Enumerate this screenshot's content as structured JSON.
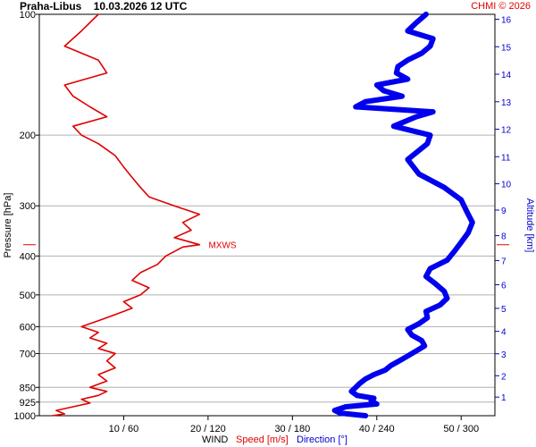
{
  "header": {
    "station": "Praha-Libus",
    "datetime": "10.03.2026 12 UTC",
    "credit": "CHMI © 2026"
  },
  "chart_data": {
    "type": "line",
    "x_title": "WIND",
    "x_speed_label": "Speed [m/s]",
    "x_direction_label": "Direction [°]",
    "ylabel_left": "Pressure [hPa]",
    "ylabel_right": "Altitude [km]",
    "pressure_ticks": [
      "100",
      "200",
      "300",
      "400",
      "500",
      "600",
      "700",
      "850",
      "925",
      "1000"
    ],
    "altitude_ticks": [
      "1",
      "2",
      "3",
      "4",
      "5",
      "6",
      "7",
      "8",
      "9",
      "10",
      "11",
      "12",
      "13",
      "14",
      "15",
      "16"
    ],
    "x_ticks": [
      "10 / 60",
      "20 / 120",
      "30 / 180",
      "40 / 240",
      "50 / 300"
    ],
    "speed_xlim": [
      0,
      54
    ],
    "direction_xlim": [
      0,
      324
    ],
    "annotation": {
      "label": "MXWS",
      "pressure": 375
    },
    "colors": {
      "speed": "#e00000",
      "direction": "#0000ee",
      "grid": "#b0b0b0"
    },
    "series": [
      {
        "name": "Speed [m/s]",
        "pressure": [
          1000,
          990,
          970,
          950,
          930,
          910,
          890,
          870,
          850,
          820,
          790,
          760,
          730,
          700,
          680,
          660,
          640,
          620,
          600,
          580,
          560,
          540,
          520,
          500,
          480,
          460,
          440,
          420,
          400,
          380,
          375,
          360,
          345,
          330,
          315,
          300,
          285,
          270,
          255,
          240,
          225,
          210,
          200,
          190,
          180,
          170,
          160,
          150,
          140,
          130,
          120,
          110,
          100
        ],
        "values": [
          1.5,
          3,
          2,
          4,
          6,
          5,
          7,
          8,
          6,
          8,
          7,
          9,
          8,
          9,
          7,
          8,
          6,
          7,
          5,
          7,
          9,
          11,
          10,
          12,
          13,
          11,
          12,
          14,
          15,
          17,
          19,
          16,
          18,
          17,
          19,
          16,
          13,
          12,
          11,
          10,
          9,
          7,
          5,
          4,
          8,
          6,
          4,
          3,
          8,
          7,
          3,
          5,
          7
        ]
      },
      {
        "name": "Direction [°]",
        "pressure": [
          1000,
          985,
          970,
          950,
          935,
          920,
          905,
          890,
          870,
          850,
          830,
          810,
          790,
          770,
          750,
          730,
          710,
          690,
          670,
          650,
          630,
          610,
          590,
          570,
          550,
          530,
          510,
          490,
          470,
          450,
          430,
          410,
          390,
          370,
          350,
          330,
          310,
          290,
          270,
          250,
          230,
          210,
          200,
          190,
          180,
          175,
          170,
          165,
          160,
          155,
          150,
          145,
          140,
          135,
          130,
          125,
          120,
          115,
          110,
          105,
          100
        ],
        "values": [
          232,
          214,
          210,
          218,
          240,
          236,
          238,
          226,
          222,
          225,
          228,
          232,
          238,
          246,
          250,
          256,
          262,
          268,
          274,
          272,
          265,
          262,
          270,
          276,
          275,
          285,
          290,
          288,
          282,
          275,
          278,
          290,
          295,
          300,
          305,
          308,
          304,
          300,
          288,
          270,
          262,
          276,
          278,
          252,
          268,
          280,
          225,
          232,
          258,
          245,
          240,
          262,
          254,
          255,
          262,
          272,
          278,
          280,
          262,
          268,
          275
        ]
      }
    ]
  }
}
